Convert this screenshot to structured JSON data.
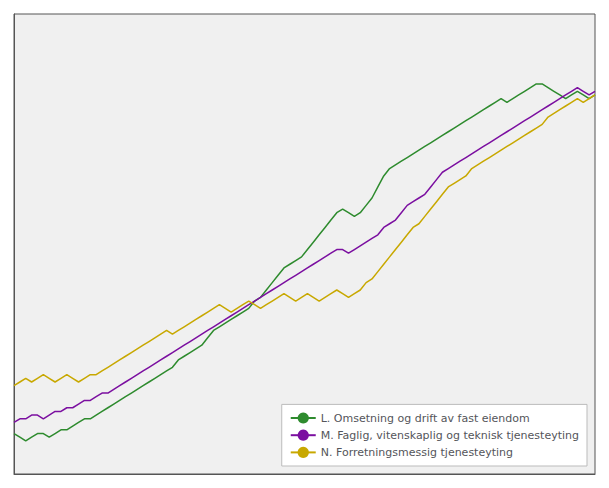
{
  "chart_data": {
    "type": "line",
    "categories": [
      null,
      null,
      null,
      null,
      null,
      null,
      null,
      null,
      null,
      null,
      null,
      null,
      null,
      null,
      null,
      null,
      null,
      null,
      null,
      null,
      null,
      null,
      null,
      null,
      null,
      null,
      null,
      null,
      null,
      null,
      null,
      null,
      null,
      null,
      null,
      null,
      null,
      null,
      null,
      null,
      null,
      null,
      null,
      null,
      null,
      null,
      null,
      null,
      null,
      null,
      null,
      null,
      null,
      null,
      null,
      null,
      null,
      null,
      null,
      null,
      null,
      null,
      null,
      null,
      null,
      null,
      null,
      null,
      null,
      null,
      null,
      null,
      null,
      null,
      null,
      null,
      null,
      null,
      null,
      null,
      null,
      null,
      null,
      null,
      null,
      null,
      null,
      null,
      null,
      null,
      null,
      null,
      null,
      null,
      null,
      null,
      null,
      null,
      null,
      null
    ],
    "series": [
      {
        "name": "L. Omsetning og drift av fast eiendom",
        "color": "#2e8b2e",
        "values": [
          86,
          85,
          84,
          85,
          86,
          86,
          85,
          86,
          87,
          87,
          88,
          89,
          90,
          90,
          91,
          92,
          93,
          94,
          95,
          96,
          97,
          98,
          99,
          100,
          101,
          102,
          103,
          104,
          106,
          107,
          108,
          109,
          110,
          112,
          114,
          115,
          116,
          117,
          118,
          119,
          120,
          122,
          123,
          125,
          127,
          129,
          131,
          132,
          133,
          134,
          136,
          138,
          140,
          142,
          144,
          146,
          147,
          146,
          145,
          146,
          148,
          150,
          153,
          156,
          158,
          159,
          160,
          161,
          162,
          163,
          164,
          165,
          166,
          167,
          168,
          169,
          170,
          171,
          172,
          173,
          174,
          175,
          176,
          177,
          176,
          177,
          178,
          179,
          180,
          181,
          181,
          180,
          179,
          178,
          177,
          178,
          179,
          178,
          177,
          178
        ]
      },
      {
        "name": "M. Faglig, vitenskaplig og teknisk tjenesteyting",
        "color": "#7b0fa0",
        "values": [
          89,
          90,
          90,
          91,
          91,
          90,
          91,
          92,
          92,
          93,
          93,
          94,
          95,
          95,
          96,
          97,
          97,
          98,
          99,
          100,
          101,
          102,
          103,
          104,
          105,
          106,
          107,
          108,
          109,
          110,
          111,
          112,
          113,
          114,
          115,
          116,
          117,
          118,
          119,
          120,
          121,
          122,
          123,
          124,
          125,
          126,
          127,
          128,
          129,
          130,
          131,
          132,
          133,
          134,
          135,
          136,
          136,
          135,
          136,
          137,
          138,
          139,
          140,
          142,
          143,
          144,
          146,
          148,
          149,
          150,
          151,
          153,
          155,
          157,
          158,
          159,
          160,
          161,
          162,
          163,
          164,
          165,
          166,
          167,
          168,
          169,
          170,
          171,
          172,
          173,
          174,
          175,
          176,
          177,
          178,
          179,
          180,
          179,
          178,
          179
        ]
      },
      {
        "name": "N. Forretningsmessig tjenesteyting",
        "color": "#c8a800",
        "values": [
          99,
          100,
          101,
          100,
          101,
          102,
          101,
          100,
          101,
          102,
          101,
          100,
          101,
          102,
          102,
          103,
          104,
          105,
          106,
          107,
          108,
          109,
          110,
          111,
          112,
          113,
          114,
          113,
          114,
          115,
          116,
          117,
          118,
          119,
          120,
          121,
          120,
          119,
          120,
          121,
          122,
          121,
          120,
          121,
          122,
          123,
          124,
          123,
          122,
          123,
          124,
          123,
          122,
          123,
          124,
          125,
          124,
          123,
          124,
          125,
          127,
          128,
          130,
          132,
          134,
          136,
          138,
          140,
          142,
          143,
          145,
          147,
          149,
          151,
          153,
          154,
          155,
          156,
          158,
          159,
          160,
          161,
          162,
          163,
          164,
          165,
          166,
          167,
          168,
          169,
          170,
          172,
          173,
          174,
          175,
          176,
          177,
          176,
          177,
          178
        ]
      }
    ],
    "ylim": [
      75,
      200
    ],
    "yticks": [],
    "grid": false,
    "tick_labels": false,
    "legend": "lower right"
  }
}
